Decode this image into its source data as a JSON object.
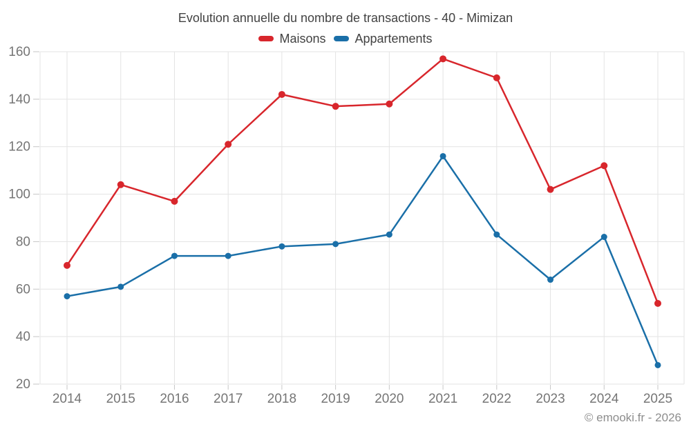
{
  "chart_data": {
    "type": "line",
    "title": "Evolution annuelle du nombre de transactions - 40 - Mimizan",
    "categories": [
      "2014",
      "2015",
      "2016",
      "2017",
      "2018",
      "2019",
      "2020",
      "2021",
      "2022",
      "2023",
      "2024",
      "2025"
    ],
    "series": [
      {
        "name": "Maisons",
        "color": "#d8262c",
        "values": [
          70,
          104,
          97,
          121,
          142,
          137,
          138,
          157,
          149,
          102,
          112,
          54
        ]
      },
      {
        "name": "Appartements",
        "color": "#1a6fa8",
        "values": [
          57,
          61,
          74,
          74,
          78,
          79,
          83,
          116,
          83,
          64,
          82,
          28
        ]
      }
    ],
    "xlabel": "",
    "ylabel": "",
    "ylim": [
      20,
      160
    ],
    "yticks": [
      20,
      40,
      60,
      80,
      100,
      120,
      140,
      160
    ],
    "grid": true,
    "legend_position": "top"
  },
  "footer": {
    "copyright": "© emooki.fr - 2026"
  }
}
